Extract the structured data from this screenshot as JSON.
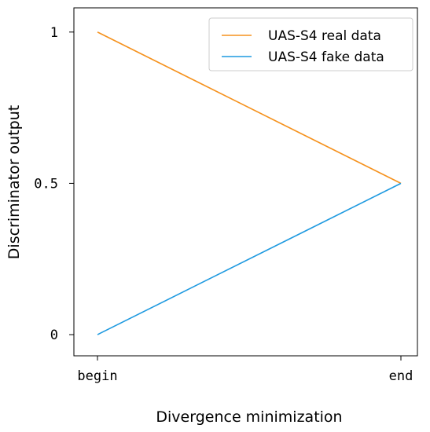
{
  "chart_data": {
    "type": "line",
    "title": "",
    "xlabel": "Divergence minimization",
    "ylabel": "Discriminator output",
    "x": [
      "begin",
      "end"
    ],
    "x_tick_labels": [
      "begin",
      "end"
    ],
    "y_tick_values": [
      0,
      0.5,
      1
    ],
    "y_tick_labels": [
      "0",
      "0.5",
      "1"
    ],
    "ylim": [
      -0.07,
      1.08
    ],
    "grid": false,
    "legend_position": "top-right",
    "series": [
      {
        "name": "UAS-S4 real data",
        "color": "#f5921e",
        "values": [
          1,
          0.5
        ]
      },
      {
        "name": "UAS-S4 fake data",
        "color": "#1f9ae0",
        "values": [
          0,
          0.5
        ]
      }
    ]
  }
}
